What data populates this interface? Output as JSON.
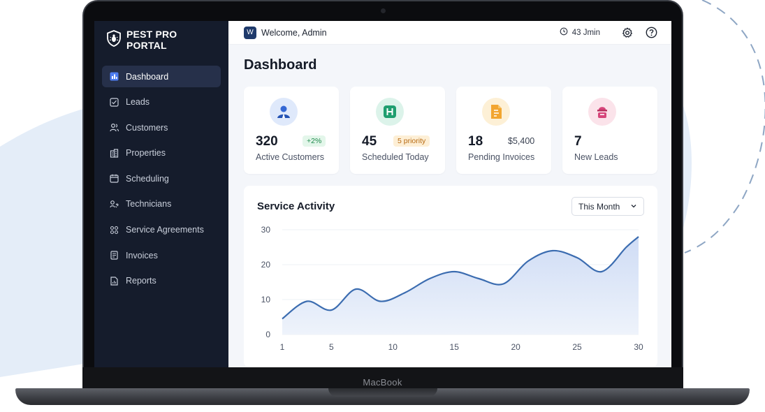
{
  "device": {
    "brand": "MacBook"
  },
  "app": {
    "name": "PEST PRO PORTAL"
  },
  "sidebar": {
    "items": [
      {
        "label": "Dashboard",
        "icon": "dashboard-icon",
        "active": true
      },
      {
        "label": "Leads",
        "icon": "checkbox-icon"
      },
      {
        "label": "Customers",
        "icon": "users-icon"
      },
      {
        "label": "Properties",
        "icon": "building-icon"
      },
      {
        "label": "Scheduling",
        "icon": "calendar-icon"
      },
      {
        "label": "Technicians",
        "icon": "technician-icon"
      },
      {
        "label": "Service Agreements",
        "icon": "agreement-icon"
      },
      {
        "label": "Invoices",
        "icon": "invoice-icon"
      },
      {
        "label": "Reports",
        "icon": "report-icon"
      }
    ]
  },
  "header": {
    "avatar_letter": "W",
    "welcome": "Welcome, Admin",
    "timer": "43 Jmin"
  },
  "page": {
    "title": "Dashboard"
  },
  "cards": [
    {
      "value": "320",
      "label": "Active Customers",
      "badge": "+2%",
      "icon": "customer-icon",
      "color": "#dfe9fb"
    },
    {
      "value": "45",
      "label": "Scheduled Today",
      "badge": "5 priority",
      "icon": "schedule-icon",
      "color": "#dcf3ea"
    },
    {
      "value": "18",
      "label": "Pending Invoices",
      "amount": "$5,400",
      "icon": "invoice-doc-icon",
      "color": "#fdf0d6"
    },
    {
      "value": "7",
      "label": "New Leads",
      "icon": "lead-icon",
      "color": "#fbe3ea"
    }
  ],
  "activity": {
    "title": "Service Activity",
    "period": "This Month"
  },
  "chart_data": {
    "type": "area",
    "title": "Service Activity",
    "xlabel": "",
    "ylabel": "",
    "x": [
      1,
      3,
      5,
      7,
      9,
      11,
      13,
      15,
      17,
      19,
      21,
      23,
      25,
      27,
      29,
      30
    ],
    "values": [
      4.5,
      9.5,
      7,
      13,
      9.5,
      12,
      16,
      18,
      16,
      14.5,
      21,
      24,
      22,
      18,
      25,
      28
    ],
    "xlim": [
      1,
      30
    ],
    "ylim": [
      0,
      30
    ],
    "x_ticks": [
      1,
      5,
      10,
      15,
      20,
      25,
      30
    ],
    "y_ticks": [
      0,
      10,
      20,
      30
    ],
    "grid": true,
    "color": "#3b6cb0"
  }
}
